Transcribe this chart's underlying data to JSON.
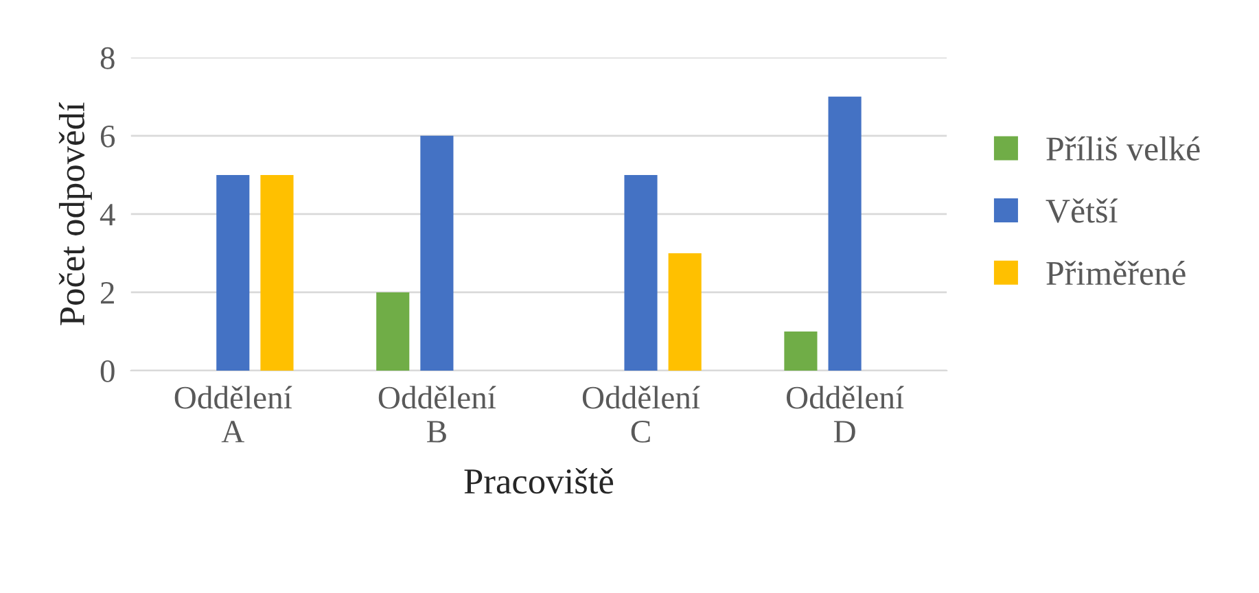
{
  "chart_data": {
    "type": "bar",
    "xlabel": "Pracoviště",
    "ylabel": "Počet odpovědí",
    "categories": [
      "Oddělení A",
      "Oddělení B",
      "Oddělení C",
      "Oddělení D"
    ],
    "series": [
      {
        "name": "Příliš velké",
        "color": "#70ad47",
        "values": [
          0,
          2,
          0,
          1
        ]
      },
      {
        "name": "Větší",
        "color": "#4472c4",
        "values": [
          5,
          6,
          5,
          7
        ]
      },
      {
        "name": "Přiměřené",
        "color": "#ffc000",
        "values": [
          5,
          0,
          3,
          0
        ]
      }
    ],
    "ylim": [
      0,
      8
    ],
    "yticks": [
      0,
      2,
      4,
      6,
      8
    ],
    "grid": "y",
    "legend": "right"
  }
}
